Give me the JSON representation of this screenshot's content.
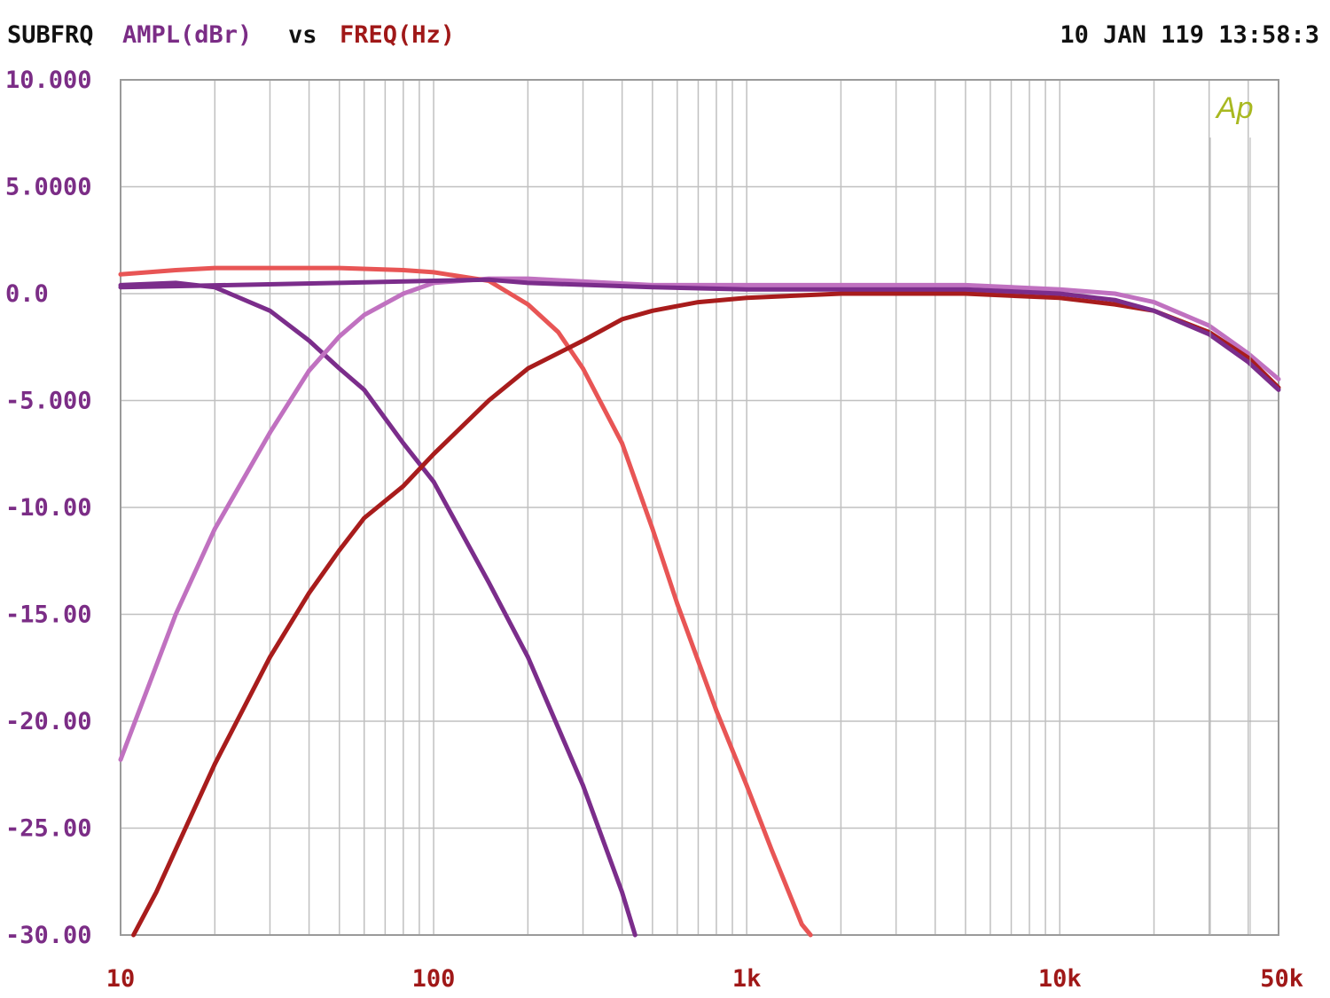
{
  "header": {
    "left_label": "SUBFRQ",
    "y_quantity": "AMPL(dBr)",
    "vs": "vs",
    "x_quantity": "FREQ(Hz)",
    "timestamp": "10 JAN 119 13:58:3",
    "logo": "Ap"
  },
  "colors": {
    "grid": "#c0c0c0",
    "frame": "#9a9a9a",
    "ylabel_color": "#7b2d86",
    "xlabel_color": "#a01818",
    "logo_color": "#a8b820",
    "header_black": "#111111"
  },
  "chart_data": {
    "type": "line",
    "x_scale": "log",
    "xlim": [
      10,
      50000
    ],
    "ylim": [
      -30,
      10
    ],
    "grid": true,
    "xlabel": "FREQ(Hz)",
    "ylabel": "AMPL(dBr)",
    "x_tick_labels": [
      {
        "value": 10,
        "label": "10"
      },
      {
        "value": 100,
        "label": "100"
      },
      {
        "value": 1000,
        "label": "1k"
      },
      {
        "value": 10000,
        "label": "10k"
      },
      {
        "value": 50000,
        "label": "50k"
      }
    ],
    "y_tick_labels": [
      {
        "value": 10,
        "label": "10.000"
      },
      {
        "value": 5,
        "label": "5.0000"
      },
      {
        "value": 0,
        "label": "0.0"
      },
      {
        "value": -5,
        "label": "-5.000"
      },
      {
        "value": -10,
        "label": "-10.00"
      },
      {
        "value": -15,
        "label": "-15.00"
      },
      {
        "value": -20,
        "label": "-20.00"
      },
      {
        "value": -25,
        "label": "-25.00"
      },
      {
        "value": -30,
        "label": "-30.00"
      }
    ],
    "series": [
      {
        "color": "#7b2d8b",
        "points": [
          [
            10,
            0.4
          ],
          [
            15,
            0.5
          ],
          [
            20,
            0.3
          ],
          [
            30,
            -0.8
          ],
          [
            40,
            -2.2
          ],
          [
            50,
            -3.5
          ],
          [
            60,
            -4.5
          ],
          [
            80,
            -7.0
          ],
          [
            100,
            -8.8
          ],
          [
            150,
            -13.5
          ],
          [
            200,
            -17.0
          ],
          [
            300,
            -23.0
          ],
          [
            400,
            -28.0
          ],
          [
            440,
            -30.0
          ]
        ]
      },
      {
        "color": "#c071c0",
        "points": [
          [
            10,
            -21.8
          ],
          [
            15,
            -15.0
          ],
          [
            20,
            -11.0
          ],
          [
            30,
            -6.5
          ],
          [
            40,
            -3.6
          ],
          [
            50,
            -2.0
          ],
          [
            60,
            -1.0
          ],
          [
            80,
            0.0
          ],
          [
            100,
            0.5
          ],
          [
            150,
            0.7
          ],
          [
            200,
            0.7
          ],
          [
            500,
            0.4
          ],
          [
            1000,
            0.4
          ],
          [
            5000,
            0.4
          ],
          [
            10000,
            0.2
          ],
          [
            15000,
            0.0
          ],
          [
            20000,
            -0.4
          ],
          [
            30000,
            -1.5
          ],
          [
            40000,
            -2.8
          ],
          [
            50000,
            -4.0
          ]
        ]
      },
      {
        "color": "#e85555",
        "points": [
          [
            10,
            0.9
          ],
          [
            15,
            1.1
          ],
          [
            20,
            1.2
          ],
          [
            50,
            1.2
          ],
          [
            80,
            1.1
          ],
          [
            100,
            1.0
          ],
          [
            150,
            0.6
          ],
          [
            200,
            -0.5
          ],
          [
            250,
            -1.8
          ],
          [
            300,
            -3.5
          ],
          [
            400,
            -7.0
          ],
          [
            500,
            -11.0
          ],
          [
            600,
            -14.5
          ],
          [
            800,
            -19.5
          ],
          [
            1000,
            -23.0
          ],
          [
            1200,
            -26.0
          ],
          [
            1500,
            -29.5
          ],
          [
            1600,
            -30.0
          ]
        ]
      },
      {
        "color": "#a81c1c",
        "points": [
          [
            11,
            -30.0
          ],
          [
            13,
            -28.0
          ],
          [
            15,
            -26.0
          ],
          [
            20,
            -22.0
          ],
          [
            30,
            -17.0
          ],
          [
            40,
            -14.0
          ],
          [
            50,
            -12.0
          ],
          [
            60,
            -10.5
          ],
          [
            80,
            -9.0
          ],
          [
            100,
            -7.5
          ],
          [
            150,
            -5.0
          ],
          [
            200,
            -3.5
          ],
          [
            300,
            -2.2
          ],
          [
            400,
            -1.2
          ],
          [
            500,
            -0.8
          ],
          [
            700,
            -0.4
          ],
          [
            1000,
            -0.2
          ],
          [
            2000,
            0.0
          ],
          [
            5000,
            0.0
          ],
          [
            10000,
            -0.2
          ],
          [
            15000,
            -0.5
          ],
          [
            20000,
            -0.8
          ],
          [
            30000,
            -1.8
          ],
          [
            40000,
            -3.0
          ],
          [
            50000,
            -4.4
          ]
        ]
      },
      {
        "color": "#7b2d8b",
        "points": [
          [
            10,
            0.3
          ],
          [
            50,
            0.5
          ],
          [
            100,
            0.6
          ],
          [
            150,
            0.65
          ],
          [
            200,
            0.5
          ],
          [
            500,
            0.3
          ],
          [
            1000,
            0.2
          ],
          [
            5000,
            0.2
          ],
          [
            10000,
            0.0
          ],
          [
            15000,
            -0.3
          ],
          [
            20000,
            -0.8
          ],
          [
            30000,
            -1.9
          ],
          [
            40000,
            -3.2
          ],
          [
            50000,
            -4.5
          ]
        ]
      }
    ]
  }
}
